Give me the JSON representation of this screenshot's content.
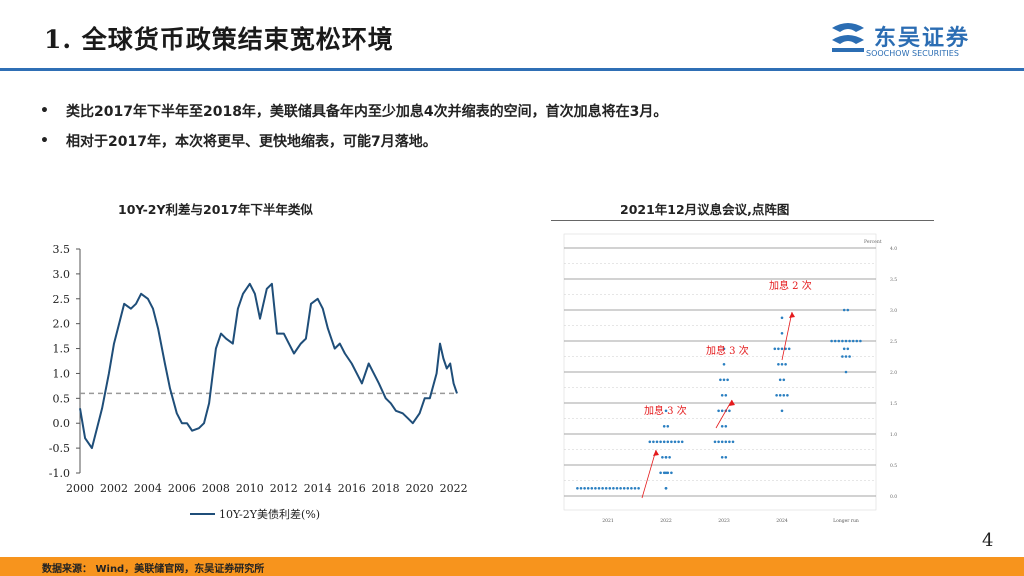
{
  "title": "1. 全球货币政策结束宽松环境",
  "logo": {
    "name": "东吴证券",
    "sub": "SOOCHOW SECURITIES",
    "colors": {
      "brand": "#2b6db3"
    }
  },
  "bullets": [
    "类比2017年下半年至2018年，美联储具备年内至少加息4次并缩表的空间，首次加息将在3月。",
    "相对于2017年，本次将更早、更快地缩表，可能7月落地。"
  ],
  "left_chart_title": "10Y-2Y利差与2017年下半年类似",
  "right_chart_title": "2021年12月议息会议,点阵图",
  "footer": "数据来源： Wind，美联储官网，东吴证券研究所",
  "page_number": "4",
  "chart_data": [
    {
      "type": "line",
      "yticks": [
        "3.5",
        "3.0",
        "2.5",
        "2.0",
        "1.5",
        "1.0",
        "0.5",
        "0.0",
        "-0.5",
        "-1.0"
      ],
      "xticks": [
        "2000",
        "2002",
        "2004",
        "2006",
        "2008",
        "2010",
        "2012",
        "2014",
        "2016",
        "2018",
        "2020",
        "2022"
      ],
      "ylim": [
        -1.0,
        3.5
      ],
      "xlim": [
        2000,
        2022.2
      ],
      "reference_line": 0.6,
      "series": [
        {
          "name": "10Y-2Y美债利差(%)",
          "color": "#1f4e79",
          "points": [
            [
              2000.0,
              0.3
            ],
            [
              2000.3,
              -0.3
            ],
            [
              2000.7,
              -0.5
            ],
            [
              2001.0,
              -0.1
            ],
            [
              2001.3,
              0.3
            ],
            [
              2001.7,
              1.0
            ],
            [
              2002.0,
              1.6
            ],
            [
              2002.3,
              2.0
            ],
            [
              2002.6,
              2.4
            ],
            [
              2003.0,
              2.3
            ],
            [
              2003.3,
              2.4
            ],
            [
              2003.6,
              2.6
            ],
            [
              2004.0,
              2.5
            ],
            [
              2004.3,
              2.3
            ],
            [
              2004.6,
              1.9
            ],
            [
              2005.0,
              1.2
            ],
            [
              2005.3,
              0.7
            ],
            [
              2005.7,
              0.2
            ],
            [
              2006.0,
              0.0
            ],
            [
              2006.3,
              0.0
            ],
            [
              2006.6,
              -0.15
            ],
            [
              2007.0,
              -0.1
            ],
            [
              2007.3,
              0.0
            ],
            [
              2007.6,
              0.4
            ],
            [
              2008.0,
              1.5
            ],
            [
              2008.3,
              1.8
            ],
            [
              2008.6,
              1.7
            ],
            [
              2009.0,
              1.6
            ],
            [
              2009.3,
              2.3
            ],
            [
              2009.6,
              2.6
            ],
            [
              2010.0,
              2.8
            ],
            [
              2010.3,
              2.6
            ],
            [
              2010.6,
              2.1
            ],
            [
              2011.0,
              2.7
            ],
            [
              2011.3,
              2.8
            ],
            [
              2011.6,
              1.8
            ],
            [
              2012.0,
              1.8
            ],
            [
              2012.3,
              1.6
            ],
            [
              2012.6,
              1.4
            ],
            [
              2013.0,
              1.6
            ],
            [
              2013.3,
              1.7
            ],
            [
              2013.6,
              2.4
            ],
            [
              2014.0,
              2.5
            ],
            [
              2014.3,
              2.3
            ],
            [
              2014.6,
              1.9
            ],
            [
              2015.0,
              1.5
            ],
            [
              2015.3,
              1.6
            ],
            [
              2015.6,
              1.4
            ],
            [
              2016.0,
              1.2
            ],
            [
              2016.3,
              1.0
            ],
            [
              2016.6,
              0.8
            ],
            [
              2017.0,
              1.2
            ],
            [
              2017.3,
              1.0
            ],
            [
              2017.6,
              0.8
            ],
            [
              2018.0,
              0.5
            ],
            [
              2018.3,
              0.4
            ],
            [
              2018.6,
              0.25
            ],
            [
              2019.0,
              0.2
            ],
            [
              2019.3,
              0.1
            ],
            [
              2019.6,
              0.0
            ],
            [
              2020.0,
              0.2
            ],
            [
              2020.3,
              0.5
            ],
            [
              2020.6,
              0.5
            ],
            [
              2021.0,
              1.0
            ],
            [
              2021.2,
              1.6
            ],
            [
              2021.4,
              1.3
            ],
            [
              2021.6,
              1.1
            ],
            [
              2021.8,
              1.2
            ],
            [
              2022.0,
              0.8
            ],
            [
              2022.2,
              0.6
            ]
          ]
        }
      ]
    },
    {
      "type": "scatter",
      "xticks": [
        "2021",
        "2022",
        "2023",
        "2024",
        "Longer run"
      ],
      "yaxis_label": "Percent",
      "yticks": [
        "4.0",
        "3.5",
        "3.0",
        "2.5",
        "2.0",
        "1.5",
        "1.0",
        "0.5",
        "0.0"
      ],
      "ylim": [
        0.0,
        4.0
      ],
      "dot_color": "#2a7fc1",
      "dots": {
        "2021": [
          [
            0.125,
            18
          ]
        ],
        "2022": [
          [
            0.125,
            0
          ],
          [
            0.375,
            1
          ],
          [
            0.625,
            3
          ],
          [
            0.875,
            10
          ],
          [
            1.125,
            2
          ],
          [
            1.375,
            0
          ],
          [
            0.625,
            0
          ],
          [
            0.375,
            4
          ],
          [
            0.125,
            1
          ]
        ],
        "2023": [
          [
            1.625,
            2
          ],
          [
            1.375,
            4
          ],
          [
            1.125,
            2
          ],
          [
            0.875,
            6
          ],
          [
            1.875,
            3
          ],
          [
            2.125,
            1
          ],
          [
            2.375,
            1
          ],
          [
            0.625,
            2
          ]
        ],
        "2024": [
          [
            2.625,
            1
          ],
          [
            2.375,
            5
          ],
          [
            2.125,
            3
          ],
          [
            1.875,
            2
          ],
          [
            1.625,
            4
          ],
          [
            1.375,
            0
          ],
          [
            2.875,
            0
          ]
        ],
        "Longer run": [
          [
            3.0,
            2
          ],
          [
            2.5,
            9
          ],
          [
            2.25,
            3
          ],
          [
            2.375,
            2
          ],
          [
            2.0,
            1
          ]
        ]
      },
      "annotations": [
        "加息 3 次",
        "加息 3 次",
        "加息 2 次"
      ],
      "annotation_color": "#e41a1c"
    }
  ]
}
